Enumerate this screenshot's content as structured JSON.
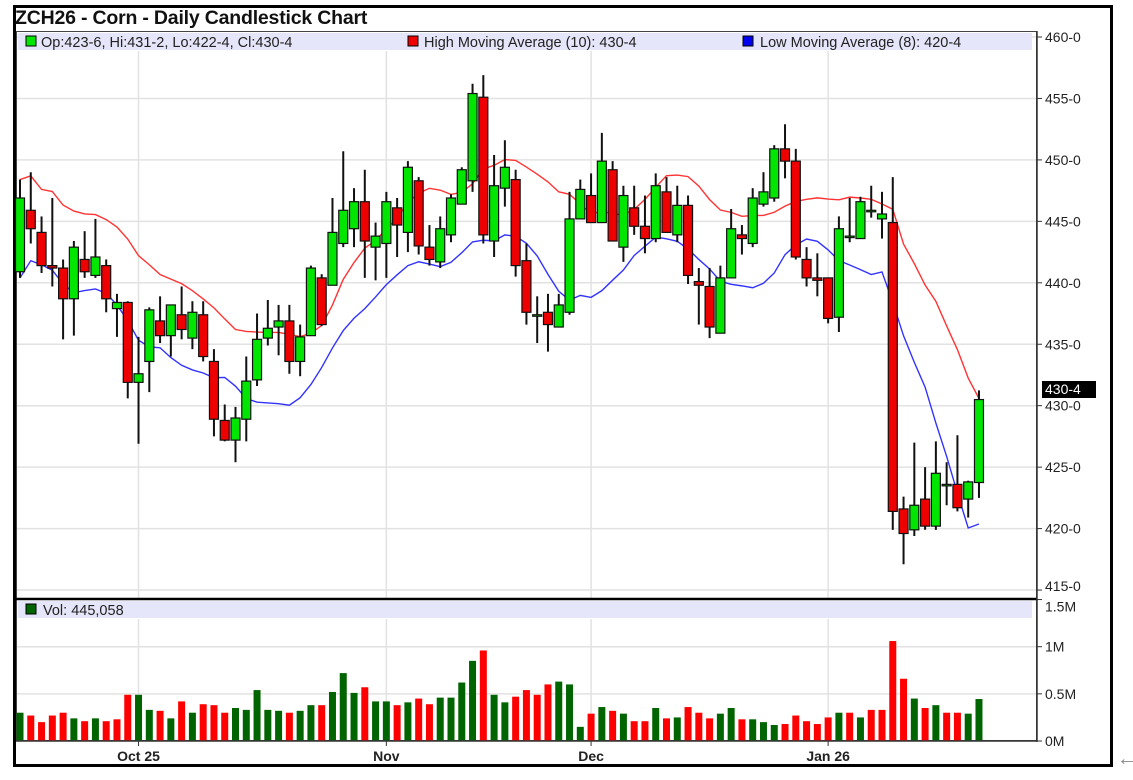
{
  "title": "ZCH26 - Corn - Daily Candlestick Chart",
  "colors": {
    "up": "#00e600",
    "down": "#ee0000",
    "vol_up": "#006400",
    "vol_down": "#ff0000",
    "high_ma": "#ff3333",
    "low_ma": "#3333ff",
    "legend_bg": "#e6e6fa"
  },
  "chart_data": [
    {
      "type": "candlestick",
      "title": "ZCH26 - Corn - Daily Candlestick Chart",
      "legend": {
        "ohlc": "Op:423-6, Hi:431-2, Lo:422-4, Cl:430-4",
        "high_ma": "High Moving Average (10): 430-4",
        "low_ma": "Low Moving Average (8): 420-4"
      },
      "high_ma_period": 10,
      "low_ma_period": 8,
      "ylim": [
        415,
        460
      ],
      "y_ticks": [
        460,
        455,
        450,
        445,
        440,
        435,
        430,
        425,
        420,
        415
      ],
      "y_tick_labels": [
        "460-0",
        "455-0",
        "450-0",
        "445-0",
        "440-0",
        "435-0",
        "430-0",
        "425-0",
        "420-0",
        "415-0"
      ],
      "last_price_label": "430-4",
      "last_price": 430.5,
      "grid": true,
      "x_tick_labels": [
        {
          "label": "Oct 25",
          "index": 11
        },
        {
          "label": "Nov",
          "index": 34
        },
        {
          "label": "Dec",
          "index": 53
        },
        {
          "label": "Jan 26",
          "index": 75
        }
      ],
      "ohlc": [
        [
          440.9,
          448.4,
          440.4,
          446.9
        ],
        [
          445.9,
          449.0,
          443.2,
          444.4
        ],
        [
          444.1,
          445.4,
          440.8,
          441.4
        ],
        [
          441.4,
          446.9,
          439.7,
          441.2
        ],
        [
          441.2,
          441.9,
          435.4,
          438.7
        ],
        [
          438.7,
          443.4,
          435.7,
          442.9
        ],
        [
          441.9,
          444.2,
          440.4,
          440.9
        ],
        [
          440.6,
          445.2,
          440.4,
          442.1
        ],
        [
          441.4,
          441.9,
          437.6,
          438.7
        ],
        [
          437.9,
          439.1,
          435.6,
          438.4
        ],
        [
          438.4,
          438.5,
          430.6,
          431.9
        ],
        [
          431.9,
          435.6,
          426.9,
          432.6
        ],
        [
          433.6,
          438.0,
          431.1,
          437.8
        ],
        [
          436.9,
          438.9,
          435.1,
          435.7
        ],
        [
          435.7,
          438.2,
          434.0,
          438.2
        ],
        [
          437.4,
          439.7,
          435.4,
          436.2
        ],
        [
          435.5,
          438.5,
          434.6,
          437.6
        ],
        [
          437.4,
          438.5,
          433.6,
          434.0
        ],
        [
          433.6,
          434.6,
          427.5,
          428.9
        ],
        [
          428.8,
          430.1,
          427.1,
          427.2
        ],
        [
          427.2,
          429.9,
          425.4,
          429.0
        ],
        [
          428.9,
          434.0,
          427.1,
          432.0
        ],
        [
          432.1,
          437.5,
          431.6,
          435.4
        ],
        [
          435.5,
          438.6,
          434.9,
          436.3
        ],
        [
          436.4,
          438.2,
          434.1,
          436.9
        ],
        [
          436.9,
          438.2,
          432.6,
          433.6
        ],
        [
          433.6,
          436.6,
          432.4,
          435.6
        ],
        [
          435.7,
          441.4,
          435.7,
          441.2
        ],
        [
          440.4,
          440.7,
          436.5,
          436.6
        ],
        [
          439.8,
          446.9,
          439.8,
          444.1
        ],
        [
          443.2,
          450.7,
          442.9,
          445.9
        ],
        [
          444.4,
          447.7,
          442.9,
          446.6
        ],
        [
          446.6,
          449.2,
          440.4,
          443.4
        ],
        [
          442.9,
          444.9,
          440.2,
          443.8
        ],
        [
          443.2,
          447.4,
          440.4,
          446.6
        ],
        [
          446.1,
          446.9,
          442.1,
          444.7
        ],
        [
          444.1,
          449.9,
          442.5,
          449.4
        ],
        [
          448.3,
          448.6,
          442.3,
          443.0
        ],
        [
          442.9,
          444.7,
          441.4,
          441.9
        ],
        [
          441.7,
          445.4,
          441.2,
          444.4
        ],
        [
          443.9,
          447.2,
          443.3,
          446.9
        ],
        [
          446.4,
          449.4,
          446.4,
          449.2
        ],
        [
          448.3,
          456.2,
          447.4,
          455.4
        ],
        [
          455.1,
          456.9,
          443.2,
          443.9
        ],
        [
          443.4,
          450.4,
          442.1,
          447.9
        ],
        [
          447.7,
          451.6,
          446.2,
          449.4
        ],
        [
          448.4,
          449.2,
          440.5,
          441.4
        ],
        [
          441.8,
          443.2,
          436.6,
          437.6
        ],
        [
          437.4,
          438.9,
          435.1,
          437.4
        ],
        [
          437.6,
          439.1,
          434.4,
          436.6
        ],
        [
          436.4,
          439.1,
          436.4,
          438.2
        ],
        [
          437.6,
          447.4,
          437.4,
          445.2
        ],
        [
          445.2,
          448.4,
          445.2,
          447.6
        ],
        [
          447.1,
          448.9,
          444.9,
          444.9
        ],
        [
          444.9,
          452.2,
          444.9,
          449.9
        ],
        [
          449.2,
          449.9,
          443.4,
          443.4
        ],
        [
          442.9,
          447.9,
          441.7,
          447.1
        ],
        [
          446.1,
          447.9,
          443.9,
          444.6
        ],
        [
          444.6,
          447.1,
          442.4,
          443.6
        ],
        [
          443.6,
          448.9,
          443.3,
          447.9
        ],
        [
          447.4,
          448.6,
          444.1,
          444.1
        ],
        [
          443.9,
          447.9,
          443.3,
          446.3
        ],
        [
          446.3,
          447.1,
          439.9,
          440.6
        ],
        [
          440.1,
          441.2,
          436.6,
          439.8
        ],
        [
          439.7,
          441.2,
          435.5,
          436.4
        ],
        [
          435.9,
          441.4,
          435.9,
          440.4
        ],
        [
          440.4,
          446.0,
          440.4,
          444.4
        ],
        [
          443.9,
          444.7,
          442.3,
          443.6
        ],
        [
          443.2,
          447.7,
          442.9,
          446.9
        ],
        [
          446.4,
          449.0,
          446.2,
          447.4
        ],
        [
          446.9,
          451.2,
          446.6,
          450.9
        ],
        [
          450.9,
          452.9,
          448.5,
          449.9
        ],
        [
          449.9,
          450.9,
          441.9,
          442.1
        ],
        [
          441.9,
          442.9,
          439.7,
          440.4
        ],
        [
          440.4,
          442.4,
          438.9,
          440.2
        ],
        [
          440.4,
          440.4,
          436.7,
          437.1
        ],
        [
          437.2,
          445.4,
          436.0,
          444.4
        ],
        [
          443.7,
          446.9,
          443.3,
          443.8
        ],
        [
          443.6,
          447.0,
          443.6,
          446.6
        ],
        [
          445.9,
          447.9,
          445.3,
          445.9
        ],
        [
          445.2,
          447.4,
          443.6,
          445.6
        ],
        [
          444.9,
          448.6,
          419.9,
          421.4
        ],
        [
          421.6,
          422.6,
          417.1,
          419.6
        ],
        [
          419.9,
          427.0,
          419.4,
          421.9
        ],
        [
          422.4,
          425.0,
          419.9,
          420.2
        ],
        [
          420.2,
          427.1,
          419.9,
          424.5
        ],
        [
          423.5,
          425.4,
          421.9,
          423.6
        ],
        [
          423.6,
          427.6,
          421.4,
          421.7
        ],
        [
          422.4,
          423.9,
          420.9,
          423.8
        ],
        [
          423.75,
          431.25,
          422.5,
          430.5
        ]
      ]
    },
    {
      "type": "bar",
      "legend": "Vol: 445,058",
      "ylim": [
        0,
        1.5
      ],
      "y_unit": "M",
      "y_ticks": [
        1.5,
        1,
        0.5,
        0
      ],
      "y_tick_labels": [
        "1.5M",
        "1M",
        "0.5M",
        "0M"
      ],
      "values": [
        0.3,
        0.27,
        0.2,
        0.27,
        0.3,
        0.24,
        0.21,
        0.24,
        0.21,
        0.23,
        0.49,
        0.49,
        0.33,
        0.32,
        0.24,
        0.42,
        0.3,
        0.39,
        0.38,
        0.3,
        0.35,
        0.33,
        0.54,
        0.33,
        0.32,
        0.3,
        0.32,
        0.38,
        0.38,
        0.52,
        0.72,
        0.51,
        0.57,
        0.42,
        0.42,
        0.38,
        0.41,
        0.45,
        0.39,
        0.46,
        0.46,
        0.62,
        0.85,
        0.96,
        0.49,
        0.41,
        0.47,
        0.54,
        0.49,
        0.6,
        0.63,
        0.6,
        0.15,
        0.29,
        0.36,
        0.32,
        0.29,
        0.21,
        0.21,
        0.35,
        0.24,
        0.25,
        0.36,
        0.3,
        0.24,
        0.29,
        0.35,
        0.23,
        0.23,
        0.2,
        0.17,
        0.18,
        0.27,
        0.21,
        0.18,
        0.25,
        0.3,
        0.3,
        0.25,
        0.33,
        0.33,
        1.06,
        0.66,
        0.45,
        0.35,
        0.38,
        0.3,
        0.3,
        0.29,
        0.445058
      ],
      "direction": [
        "u",
        "d",
        "d",
        "d",
        "d",
        "u",
        "d",
        "u",
        "d",
        "d",
        "d",
        "u",
        "u",
        "d",
        "u",
        "d",
        "u",
        "d",
        "d",
        "d",
        "u",
        "u",
        "u",
        "u",
        "u",
        "d",
        "u",
        "u",
        "d",
        "u",
        "u",
        "u",
        "d",
        "u",
        "u",
        "d",
        "u",
        "d",
        "d",
        "u",
        "u",
        "u",
        "u",
        "d",
        "u",
        "u",
        "d",
        "d",
        "d",
        "d",
        "u",
        "u",
        "u",
        "d",
        "u",
        "d",
        "u",
        "d",
        "d",
        "u",
        "d",
        "u",
        "d",
        "d",
        "d",
        "u",
        "u",
        "d",
        "u",
        "u",
        "u",
        "d",
        "d",
        "d",
        "d",
        "d",
        "u",
        "d",
        "u",
        "d",
        "d",
        "d",
        "d",
        "u",
        "d",
        "u",
        "d",
        "d",
        "u",
        "u"
      ]
    }
  ],
  "back_icon": "arrow-left-icon"
}
